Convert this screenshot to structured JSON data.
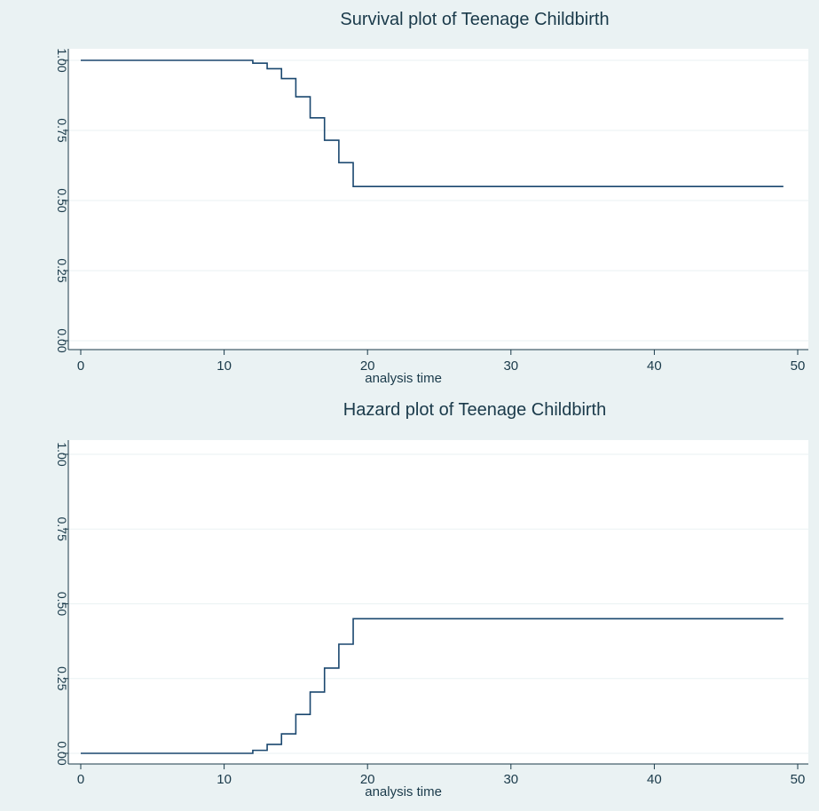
{
  "colors": {
    "background": "#eaf2f3",
    "plot_region": "#ffffff",
    "line": "#1a476f",
    "grid": "#eaf2f3",
    "axis": "#1a3a4a"
  },
  "chart_data": [
    {
      "type": "line",
      "step": true,
      "title": "Survival plot of Teenage Childbirth",
      "xlabel": "analysis time",
      "ylabel": "",
      "xlim": [
        0,
        50
      ],
      "ylim": [
        0,
        1
      ],
      "xticks": [
        0,
        10,
        20,
        30,
        40,
        50
      ],
      "yticks": [
        "0.00",
        "0.25",
        "0.50",
        "0.75",
        "1.00"
      ],
      "grid": true,
      "series": [
        {
          "x": [
            0,
            12,
            13,
            14,
            15,
            16,
            17,
            18,
            19,
            49
          ],
          "y": [
            1.0,
            0.99,
            0.97,
            0.935,
            0.87,
            0.795,
            0.715,
            0.635,
            0.55,
            0.55
          ]
        }
      ]
    },
    {
      "type": "line",
      "step": true,
      "title": "Hazard plot of Teenage Childbirth",
      "xlabel": "analysis time",
      "ylabel": "",
      "xlim": [
        0,
        50
      ],
      "ylim": [
        0,
        1
      ],
      "xticks": [
        0,
        10,
        20,
        30,
        40,
        50
      ],
      "yticks": [
        "0.00",
        "0.25",
        "0.50",
        "0.75",
        "1.00"
      ],
      "grid": true,
      "series": [
        {
          "x": [
            0,
            12,
            13,
            14,
            15,
            16,
            17,
            18,
            19,
            49
          ],
          "y": [
            0.0,
            0.01,
            0.03,
            0.065,
            0.13,
            0.205,
            0.285,
            0.365,
            0.45,
            0.45
          ]
        }
      ]
    }
  ]
}
